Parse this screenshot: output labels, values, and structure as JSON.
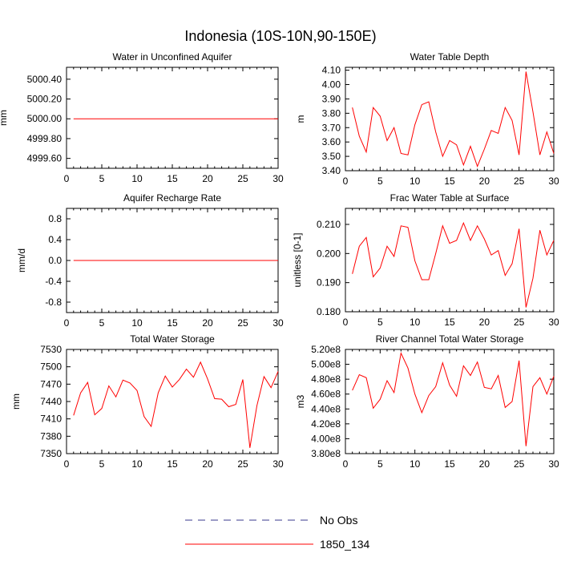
{
  "figure": {
    "title": "Indonesia (10S-10N,90-150E)"
  },
  "legend": {
    "entries": [
      {
        "label": "No Obs",
        "color": "#3a3a8c",
        "style": "dashed"
      },
      {
        "label": "1850_134",
        "color": "#ff0000",
        "style": "solid"
      }
    ]
  },
  "chart_data": [
    {
      "type": "line",
      "title": "Water in Unconfined Aquifer",
      "ylabel": "mm",
      "xlim": [
        0,
        30
      ],
      "xticks": [
        0,
        5,
        10,
        15,
        20,
        25,
        30
      ],
      "ylim": [
        4999.5,
        5000.52
      ],
      "yticks": [
        4999.6,
        4999.8,
        5000.0,
        5000.2,
        5000.4
      ],
      "ytick_labels": [
        "4999.60",
        "4999.80",
        "5000.00",
        "5000.20",
        "5000.40"
      ],
      "series": [
        {
          "name": "1850_134",
          "color": "#ff0000",
          "x": [
            1,
            30
          ],
          "y": [
            5000.0,
            5000.0
          ]
        }
      ]
    },
    {
      "type": "line",
      "title": "Water Table Depth",
      "ylabel": "m",
      "xlim": [
        0,
        30
      ],
      "xticks": [
        0,
        5,
        10,
        15,
        20,
        25,
        30
      ],
      "ylim": [
        3.4,
        4.12
      ],
      "yticks": [
        3.4,
        3.5,
        3.6,
        3.7,
        3.8,
        3.9,
        4.0,
        4.1
      ],
      "ytick_labels": [
        "3.40",
        "3.50",
        "3.60",
        "3.70",
        "3.80",
        "3.90",
        "4.00",
        "4.10"
      ],
      "series": [
        {
          "name": "1850_134",
          "color": "#ff0000",
          "x": [
            1,
            2,
            3,
            4,
            5,
            6,
            7,
            8,
            9,
            10,
            11,
            12,
            13,
            14,
            15,
            16,
            17,
            18,
            19,
            20,
            21,
            22,
            23,
            24,
            25,
            26,
            27,
            28,
            29,
            30
          ],
          "y": [
            3.84,
            3.64,
            3.53,
            3.84,
            3.78,
            3.61,
            3.7,
            3.52,
            3.51,
            3.72,
            3.86,
            3.88,
            3.67,
            3.5,
            3.61,
            3.58,
            3.44,
            3.57,
            3.43,
            3.55,
            3.68,
            3.66,
            3.84,
            3.75,
            3.51,
            4.09,
            3.81,
            3.51,
            3.67,
            3.52
          ]
        }
      ]
    },
    {
      "type": "line",
      "title": "Aquifer Recharge Rate",
      "ylabel": "mm/d",
      "xlim": [
        0,
        30
      ],
      "xticks": [
        0,
        5,
        10,
        15,
        20,
        25,
        30
      ],
      "ylim": [
        -1.0,
        1.0
      ],
      "yticks": [
        -0.8,
        -0.4,
        0.0,
        0.4,
        0.8
      ],
      "ytick_labels": [
        "-0.8",
        "-0.4",
        "0.0",
        "0.4",
        "0.8"
      ],
      "series": [
        {
          "name": "1850_134",
          "color": "#ff0000",
          "x": [
            1,
            30
          ],
          "y": [
            0.0,
            0.0
          ]
        }
      ]
    },
    {
      "type": "line",
      "title": "Frac Water Table at Surface",
      "ylabel": "unitless [0-1]",
      "xlim": [
        0,
        30
      ],
      "xticks": [
        0,
        5,
        10,
        15,
        20,
        25,
        30
      ],
      "ylim": [
        0.18,
        0.2155
      ],
      "yticks": [
        0.18,
        0.19,
        0.2,
        0.21
      ],
      "ytick_labels": [
        "0.180",
        "0.190",
        "0.200",
        "0.210"
      ],
      "series": [
        {
          "name": "1850_134",
          "color": "#ff0000",
          "x": [
            1,
            2,
            3,
            4,
            5,
            6,
            7,
            8,
            9,
            10,
            11,
            12,
            13,
            14,
            15,
            16,
            17,
            18,
            19,
            20,
            21,
            22,
            23,
            24,
            25,
            26,
            27,
            28,
            29,
            30
          ],
          "y": [
            0.193,
            0.2025,
            0.2055,
            0.192,
            0.195,
            0.2025,
            0.199,
            0.2095,
            0.209,
            0.1975,
            0.191,
            0.191,
            0.2,
            0.2095,
            0.2035,
            0.2045,
            0.2105,
            0.2045,
            0.2095,
            0.205,
            0.1995,
            0.201,
            0.1925,
            0.1965,
            0.2085,
            0.1815,
            0.1915,
            0.208,
            0.1995,
            0.2045
          ]
        }
      ]
    },
    {
      "type": "line",
      "title": "Total Water Storage",
      "ylabel": "mm",
      "xlim": [
        0,
        30
      ],
      "xticks": [
        0,
        5,
        10,
        15,
        20,
        25,
        30
      ],
      "ylim": [
        7350,
        7530
      ],
      "yticks": [
        7350,
        7380,
        7410,
        7440,
        7470,
        7500,
        7530
      ],
      "ytick_labels": [
        "7350",
        "7380",
        "7410",
        "7440",
        "7470",
        "7500",
        "7530"
      ],
      "series": [
        {
          "name": "1850_134",
          "color": "#ff0000",
          "x": [
            1,
            2,
            3,
            4,
            5,
            6,
            7,
            8,
            9,
            10,
            11,
            12,
            13,
            14,
            15,
            16,
            17,
            18,
            19,
            20,
            21,
            22,
            23,
            24,
            25,
            26,
            27,
            28,
            29,
            30
          ],
          "y": [
            7416,
            7455,
            7473,
            7417,
            7428,
            7467,
            7448,
            7477,
            7472,
            7459,
            7414,
            7397,
            7455,
            7484,
            7465,
            7478,
            7496,
            7482,
            7508,
            7479,
            7445,
            7444,
            7431,
            7435,
            7478,
            7360,
            7433,
            7483,
            7464,
            7492
          ]
        }
      ]
    },
    {
      "type": "line",
      "title": "River Channel Total Water Storage",
      "ylabel": "m3",
      "xlim": [
        0,
        30
      ],
      "xticks": [
        0,
        5,
        10,
        15,
        20,
        25,
        30
      ],
      "ylim": [
        380000000.0,
        520000000.0
      ],
      "yticks": [
        380000000.0,
        400000000.0,
        420000000.0,
        440000000.0,
        460000000.0,
        480000000.0,
        500000000.0,
        520000000.0
      ],
      "ytick_labels": [
        "3.80e8",
        "4.00e8",
        "4.20e8",
        "4.40e8",
        "4.60e8",
        "4.80e8",
        "5.00e8",
        "5.20e8"
      ],
      "series": [
        {
          "name": "1850_134",
          "color": "#ff0000",
          "x": [
            1,
            2,
            3,
            4,
            5,
            6,
            7,
            8,
            9,
            10,
            11,
            12,
            13,
            14,
            15,
            16,
            17,
            18,
            19,
            20,
            21,
            22,
            23,
            24,
            25,
            26,
            27,
            28,
            29,
            30
          ],
          "y": [
            465000000.0,
            486000000.0,
            482000000.0,
            441000000.0,
            453000000.0,
            478000000.0,
            462000000.0,
            515000000.0,
            495000000.0,
            460000000.0,
            435000000.0,
            458000000.0,
            470000000.0,
            502000000.0,
            472000000.0,
            457000000.0,
            498000000.0,
            485000000.0,
            503000000.0,
            469000000.0,
            467000000.0,
            485000000.0,
            442000000.0,
            450000000.0,
            505000000.0,
            390000000.0,
            470000000.0,
            482000000.0,
            460000000.0,
            484000000.0
          ]
        }
      ]
    }
  ]
}
